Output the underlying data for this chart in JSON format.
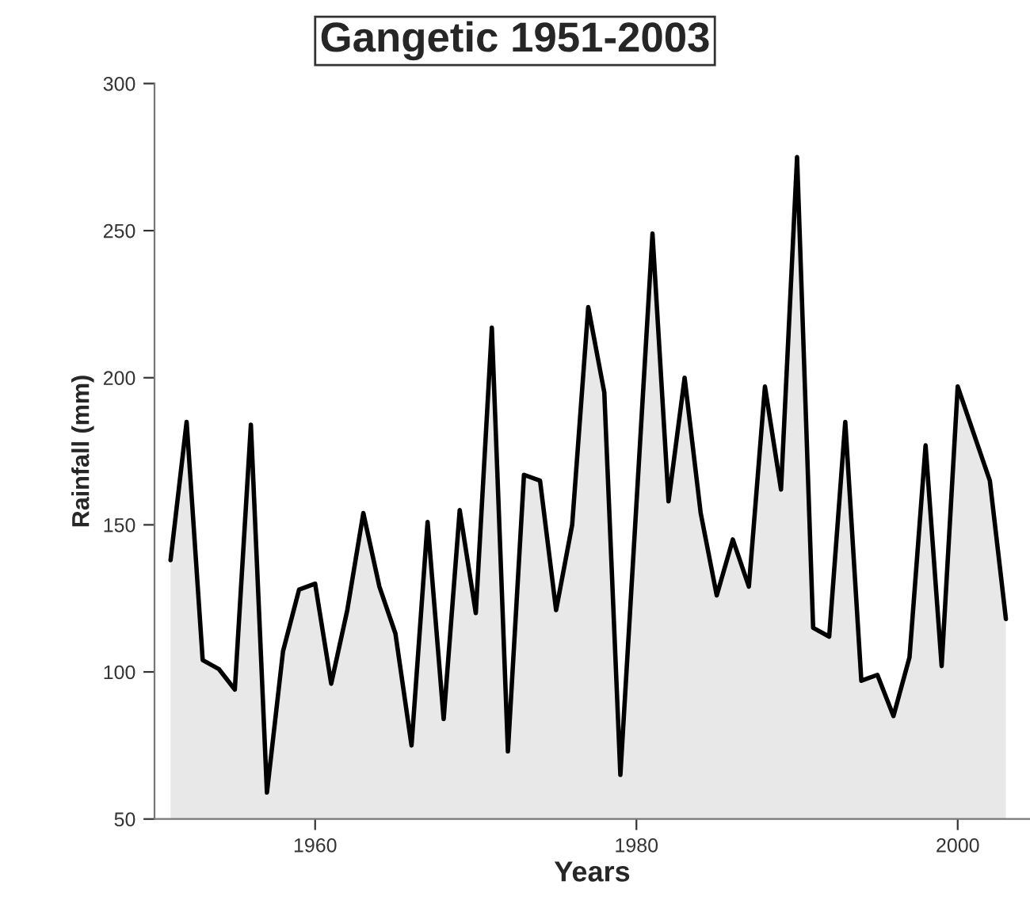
{
  "chart_data": {
    "type": "area",
    "title": "Gangetic 1951-2003",
    "xlabel": "Years",
    "ylabel": "Rainfall (mm)",
    "x": [
      1951,
      1952,
      1953,
      1954,
      1955,
      1956,
      1957,
      1958,
      1959,
      1960,
      1961,
      1962,
      1963,
      1964,
      1965,
      1966,
      1967,
      1968,
      1969,
      1970,
      1971,
      1972,
      1973,
      1974,
      1975,
      1976,
      1977,
      1978,
      1979,
      1980,
      1981,
      1982,
      1983,
      1984,
      1985,
      1986,
      1987,
      1988,
      1989,
      1990,
      1991,
      1992,
      1993,
      1994,
      1995,
      1996,
      1997,
      1998,
      1999,
      2000,
      2001,
      2002,
      2003
    ],
    "series": [
      {
        "color": "#000000",
        "values": [
          138,
          185,
          104,
          101,
          94,
          184,
          59,
          107,
          128,
          130,
          96,
          121,
          154,
          129,
          113,
          75,
          151,
          84,
          155,
          120,
          217,
          73,
          167,
          165,
          121,
          150,
          224,
          195,
          65,
          157,
          249,
          158,
          200,
          154,
          126,
          145,
          129,
          197,
          162,
          275,
          115,
          112,
          185,
          97,
          99,
          85,
          105,
          177,
          102,
          197,
          181,
          165,
          118
        ]
      }
    ],
    "xlim": [
      1950,
      2004.5
    ],
    "xticks": [
      1960,
      1980,
      2000
    ],
    "ylim": [
      50,
      300
    ],
    "yticks": [
      50,
      100,
      150,
      200,
      250,
      300
    ],
    "grid": false
  }
}
